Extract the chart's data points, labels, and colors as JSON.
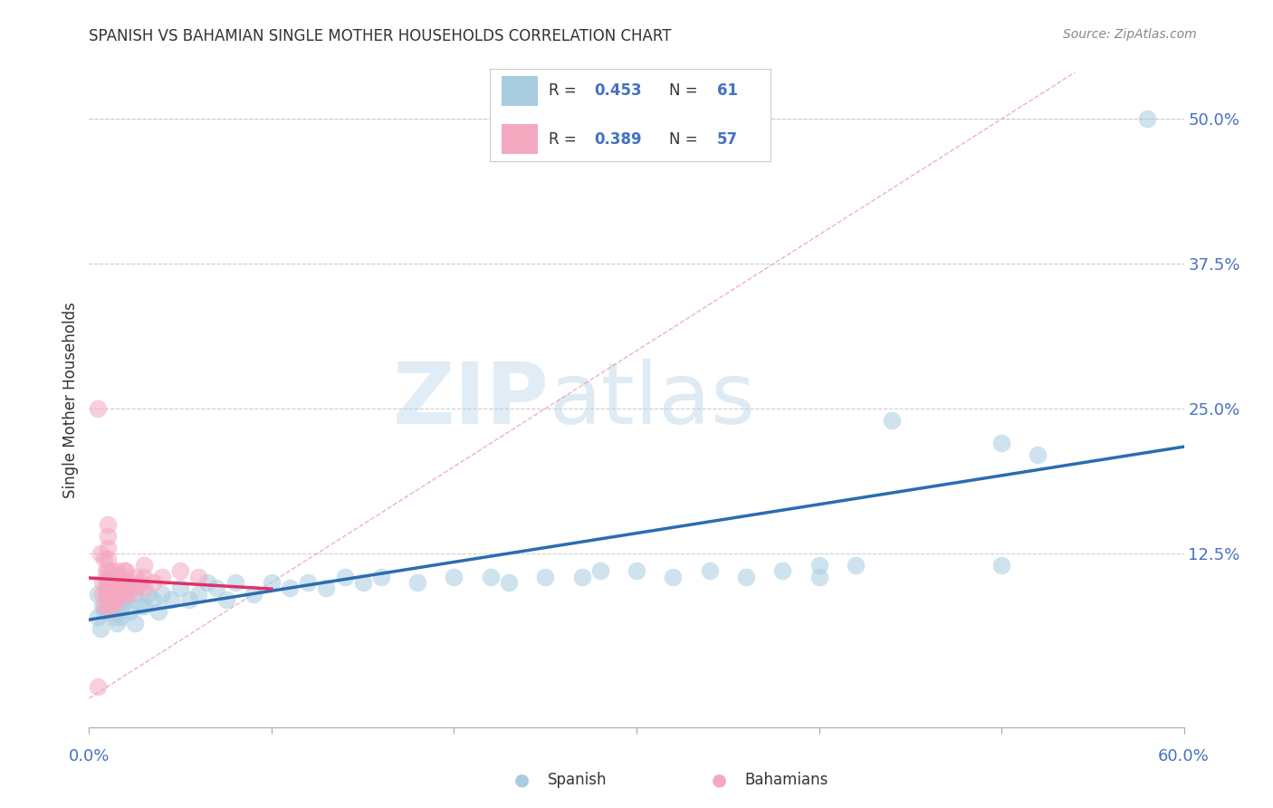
{
  "title": "SPANISH VS BAHAMIAN SINGLE MOTHER HOUSEHOLDS CORRELATION CHART",
  "source": "Source: ZipAtlas.com",
  "ylabel": "Single Mother Households",
  "xlim": [
    0.0,
    0.6
  ],
  "ylim": [
    -0.025,
    0.54
  ],
  "yticks": [
    0.0,
    0.125,
    0.25,
    0.375,
    0.5
  ],
  "ytick_labels": [
    "",
    "12.5%",
    "25.0%",
    "37.5%",
    "50.0%"
  ],
  "xticks": [
    0.0,
    0.1,
    0.2,
    0.3,
    0.4,
    0.5,
    0.6
  ],
  "background_color": "#ffffff",
  "grid_color": "#cccccc",
  "spanish_color": "#a8cce0",
  "bahamian_color": "#f4a8c0",
  "spanish_line_color": "#2b6cb0",
  "bahamian_line_color": "#e0306a",
  "diagonal_color": "#e8a0b0",
  "R_spanish": 0.453,
  "N_spanish": 61,
  "R_bahamian": 0.389,
  "N_bahamian": 57,
  "watermark_zip": "ZIP",
  "watermark_atlas": "atlas",
  "spanish_points": [
    [
      0.005,
      0.07
    ],
    [
      0.007,
      0.08
    ],
    [
      0.005,
      0.09
    ],
    [
      0.006,
      0.06
    ],
    [
      0.008,
      0.075
    ],
    [
      0.01,
      0.08
    ],
    [
      0.01,
      0.075
    ],
    [
      0.01,
      0.09
    ],
    [
      0.012,
      0.085
    ],
    [
      0.013,
      0.07
    ],
    [
      0.015,
      0.065
    ],
    [
      0.015,
      0.08
    ],
    [
      0.016,
      0.09
    ],
    [
      0.017,
      0.07
    ],
    [
      0.018,
      0.08
    ],
    [
      0.02,
      0.085
    ],
    [
      0.022,
      0.075
    ],
    [
      0.025,
      0.09
    ],
    [
      0.025,
      0.065
    ],
    [
      0.028,
      0.08
    ],
    [
      0.03,
      0.08
    ],
    [
      0.032,
      0.09
    ],
    [
      0.035,
      0.085
    ],
    [
      0.038,
      0.075
    ],
    [
      0.04,
      0.09
    ],
    [
      0.045,
      0.085
    ],
    [
      0.05,
      0.095
    ],
    [
      0.055,
      0.085
    ],
    [
      0.06,
      0.09
    ],
    [
      0.065,
      0.1
    ],
    [
      0.07,
      0.095
    ],
    [
      0.075,
      0.085
    ],
    [
      0.08,
      0.1
    ],
    [
      0.09,
      0.09
    ],
    [
      0.1,
      0.1
    ],
    [
      0.11,
      0.095
    ],
    [
      0.12,
      0.1
    ],
    [
      0.13,
      0.095
    ],
    [
      0.14,
      0.105
    ],
    [
      0.15,
      0.1
    ],
    [
      0.16,
      0.105
    ],
    [
      0.18,
      0.1
    ],
    [
      0.2,
      0.105
    ],
    [
      0.22,
      0.105
    ],
    [
      0.23,
      0.1
    ],
    [
      0.25,
      0.105
    ],
    [
      0.27,
      0.105
    ],
    [
      0.28,
      0.11
    ],
    [
      0.3,
      0.11
    ],
    [
      0.32,
      0.105
    ],
    [
      0.34,
      0.11
    ],
    [
      0.36,
      0.105
    ],
    [
      0.38,
      0.11
    ],
    [
      0.4,
      0.115
    ],
    [
      0.4,
      0.105
    ],
    [
      0.42,
      0.115
    ],
    [
      0.44,
      0.24
    ],
    [
      0.5,
      0.115
    ],
    [
      0.5,
      0.22
    ],
    [
      0.52,
      0.21
    ],
    [
      0.58,
      0.5
    ]
  ],
  "bahamian_points": [
    [
      0.005,
      0.25
    ],
    [
      0.006,
      0.125
    ],
    [
      0.007,
      0.1
    ],
    [
      0.007,
      0.09
    ],
    [
      0.008,
      0.08
    ],
    [
      0.008,
      0.12
    ],
    [
      0.009,
      0.1
    ],
    [
      0.009,
      0.09
    ],
    [
      0.009,
      0.11
    ],
    [
      0.01,
      0.08
    ],
    [
      0.01,
      0.09
    ],
    [
      0.01,
      0.1
    ],
    [
      0.01,
      0.11
    ],
    [
      0.01,
      0.12
    ],
    [
      0.01,
      0.13
    ],
    [
      0.01,
      0.14
    ],
    [
      0.01,
      0.15
    ],
    [
      0.01,
      0.085
    ],
    [
      0.01,
      0.095
    ],
    [
      0.01,
      0.105
    ],
    [
      0.012,
      0.08
    ],
    [
      0.012,
      0.09
    ],
    [
      0.012,
      0.1
    ],
    [
      0.012,
      0.11
    ],
    [
      0.013,
      0.085
    ],
    [
      0.013,
      0.095
    ],
    [
      0.013,
      0.105
    ],
    [
      0.014,
      0.09
    ],
    [
      0.014,
      0.1
    ],
    [
      0.015,
      0.085
    ],
    [
      0.015,
      0.095
    ],
    [
      0.015,
      0.11
    ],
    [
      0.016,
      0.09
    ],
    [
      0.016,
      0.1
    ],
    [
      0.017,
      0.095
    ],
    [
      0.017,
      0.105
    ],
    [
      0.018,
      0.09
    ],
    [
      0.018,
      0.1
    ],
    [
      0.019,
      0.095
    ],
    [
      0.019,
      0.11
    ],
    [
      0.02,
      0.09
    ],
    [
      0.02,
      0.095
    ],
    [
      0.02,
      0.1
    ],
    [
      0.02,
      0.11
    ],
    [
      0.022,
      0.09
    ],
    [
      0.022,
      0.1
    ],
    [
      0.025,
      0.095
    ],
    [
      0.025,
      0.105
    ],
    [
      0.028,
      0.1
    ],
    [
      0.03,
      0.095
    ],
    [
      0.03,
      0.105
    ],
    [
      0.03,
      0.115
    ],
    [
      0.035,
      0.1
    ],
    [
      0.04,
      0.105
    ],
    [
      0.05,
      0.11
    ],
    [
      0.06,
      0.105
    ],
    [
      0.005,
      0.01
    ]
  ]
}
